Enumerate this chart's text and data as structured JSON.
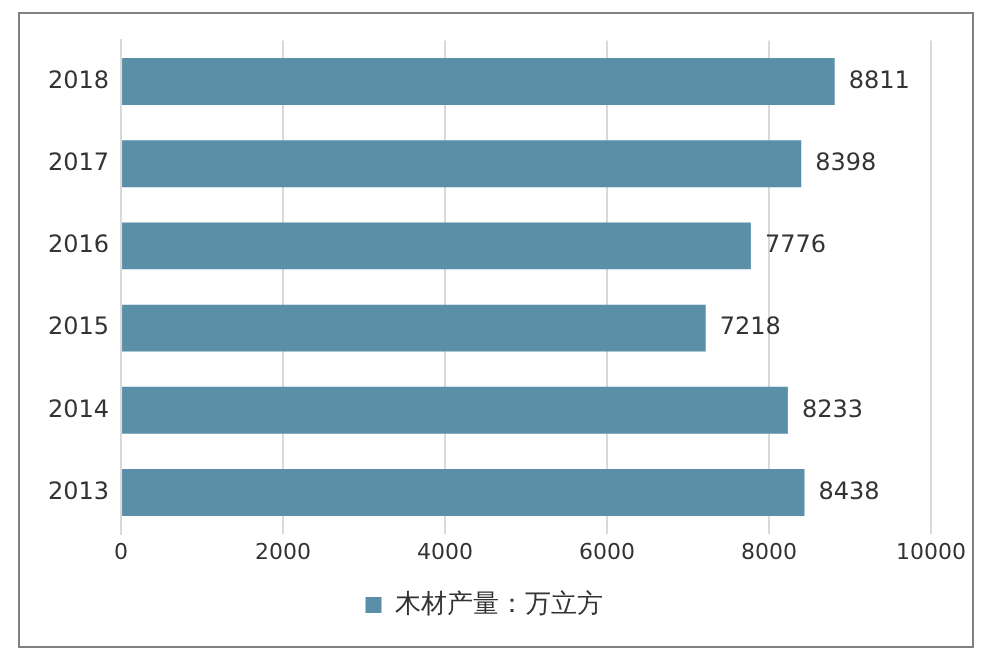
{
  "chart_data": {
    "type": "bar",
    "orientation": "horizontal",
    "categories": [
      "2018",
      "2017",
      "2016",
      "2015",
      "2014",
      "2013"
    ],
    "series": [
      {
        "name": "木材产量：万立方",
        "color": "#5b8fa8",
        "values": [
          8811,
          8398,
          7776,
          7218,
          8233,
          8438
        ]
      }
    ],
    "xlim": [
      0,
      10000
    ],
    "xticks": [
      0,
      2000,
      4000,
      6000,
      8000,
      10000
    ],
    "grid": "x",
    "legend": "bottom",
    "data_labels": true
  }
}
